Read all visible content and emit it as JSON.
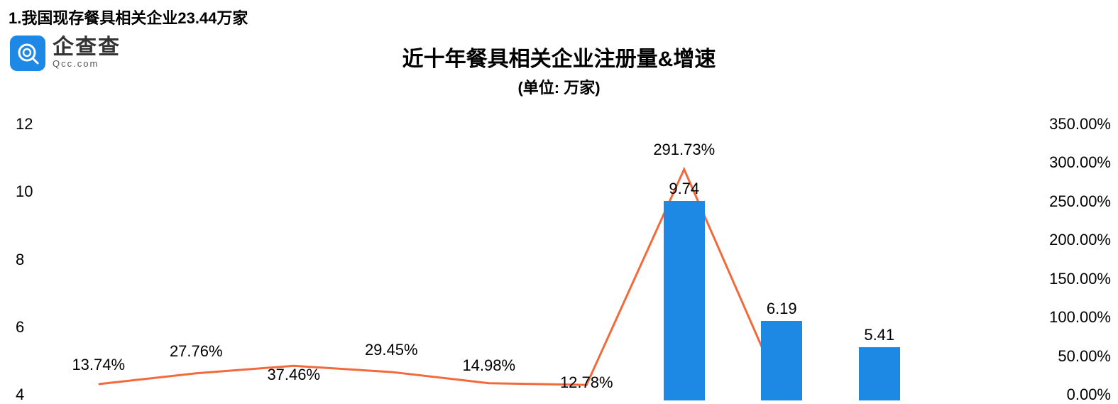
{
  "heading": "1.我国现存餐具相关企业23.44万家",
  "logo": {
    "name_cn": "企查查",
    "name_en": "Qcc.com",
    "icon_bg": "#1e88e5",
    "icon_fg": "#ffffff"
  },
  "chart": {
    "type": "bar+line",
    "title": "近十年餐具相关企业注册量&增速",
    "subtitle": "(单位: 万家)",
    "background_color": "#ffffff",
    "bar_color": "#1e88e5",
    "line_color": "#f26a3c",
    "line_width": 3,
    "bar_width_ratio": 0.42,
    "title_fontsize": 30,
    "subtitle_fontsize": 22,
    "tick_fontsize": 22,
    "label_fontsize": 22,
    "y_left": {
      "min": 4,
      "max": 12,
      "ticks": [
        4,
        6,
        8,
        10,
        12
      ]
    },
    "y_right": {
      "min": 0,
      "max": 350,
      "ticks": [
        0,
        50,
        100,
        150,
        200,
        250,
        300,
        350
      ],
      "tick_labels": [
        "0.00%",
        "50.00%",
        "100.00%",
        "150.00%",
        "200.00%",
        "250.00%",
        "300.00%",
        "350.00%"
      ]
    },
    "n_categories": 10,
    "bars": [
      {
        "index": 6,
        "value": 9.74,
        "label": "9.74"
      },
      {
        "index": 7,
        "value": 6.19,
        "label": "6.19"
      },
      {
        "index": 8,
        "value": 5.41,
        "label": "5.41"
      }
    ],
    "line_points": [
      {
        "index": 0,
        "value": 13.74,
        "label": "13.74%",
        "label_dy": -14
      },
      {
        "index": 1,
        "value": 27.76,
        "label": "27.76%",
        "label_dy": -18
      },
      {
        "index": 2,
        "value": 37.46,
        "label": "37.46%",
        "label_dy": 26
      },
      {
        "index": 3,
        "value": 29.45,
        "label": "29.45%",
        "label_dy": -18
      },
      {
        "index": 4,
        "value": 14.98,
        "label": "14.98%",
        "label_dy": -12
      },
      {
        "index": 5,
        "value": 12.78,
        "label": "12.78%",
        "label_dy": 10
      },
      {
        "index": 6,
        "value": 291.73,
        "label": "291.73%",
        "label_dy": -14
      },
      {
        "index": 7,
        "value": 3.0,
        "label": "",
        "label_dy": 0
      }
    ]
  }
}
